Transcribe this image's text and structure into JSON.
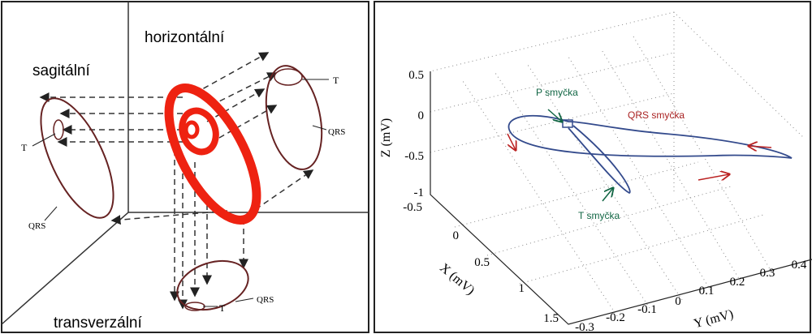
{
  "left_panel": {
    "planes": {
      "horizontal": "horizontální",
      "sagittal": "sagitální",
      "transverse": "transverzální"
    },
    "loop_labels": {
      "horizontal_t": "T",
      "horizontal_qrs": "QRS",
      "sagittal_t": "T",
      "sagittal_qrs": "QRS",
      "transverse_t": "T",
      "transverse_qrs": "QRS"
    }
  },
  "right_panel": {
    "axis_labels": {
      "z": "Z (mV)",
      "x": "X (mV)",
      "y": "Y (mV)"
    },
    "z_ticks": [
      "0.5",
      "0",
      "-0.5",
      "-1"
    ],
    "x_ticks": [
      "-0.5",
      "0",
      "0.5",
      "1",
      "1.5"
    ],
    "y_ticks": [
      "-0.3",
      "-0.2",
      "-0.1",
      "0",
      "0.1",
      "0.2",
      "0.3",
      "0.4"
    ],
    "annotations": {
      "p_loop": "P smyčka",
      "qrs_loop": "QRS smyčka",
      "t_loop": "T smyčka"
    }
  }
}
